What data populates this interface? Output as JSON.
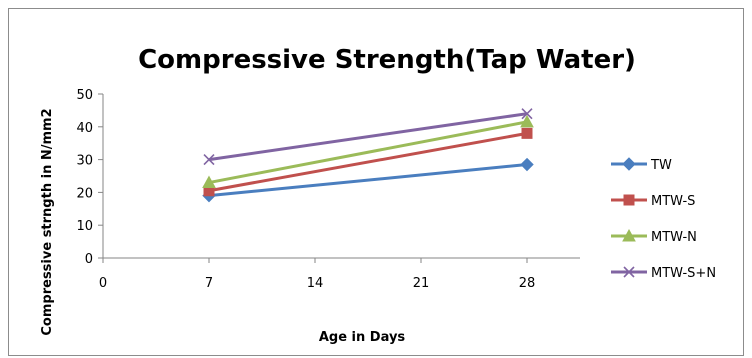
{
  "chart_data": {
    "type": "line",
    "title": "Compressive Strength(Tap Water)",
    "xlabel": "Age  in Days",
    "ylabel": "Compressive strngth in N/mm2",
    "xlim": [
      0,
      31.5
    ],
    "ylim": [
      0,
      50
    ],
    "x_ticks": [
      0,
      7,
      14,
      21,
      28
    ],
    "y_ticks": [
      0,
      10,
      20,
      30,
      40,
      50
    ],
    "grid": false,
    "legend_position": "right",
    "series": [
      {
        "name": "TW",
        "color": "#4a7ebf",
        "marker": "diamond",
        "x": [
          7,
          28
        ],
        "y": [
          19,
          28.5
        ]
      },
      {
        "name": "MTW-S",
        "color": "#c0504d",
        "marker": "square",
        "x": [
          7,
          28
        ],
        "y": [
          20.5,
          38
        ]
      },
      {
        "name": "MTW-N",
        "color": "#9bbb59",
        "marker": "triangle",
        "x": [
          7,
          28
        ],
        "y": [
          23,
          41.5
        ]
      },
      {
        "name": "MTW-S+N",
        "color": "#8064a2",
        "marker": "x",
        "x": [
          7,
          28
        ],
        "y": [
          30,
          44
        ]
      }
    ]
  }
}
